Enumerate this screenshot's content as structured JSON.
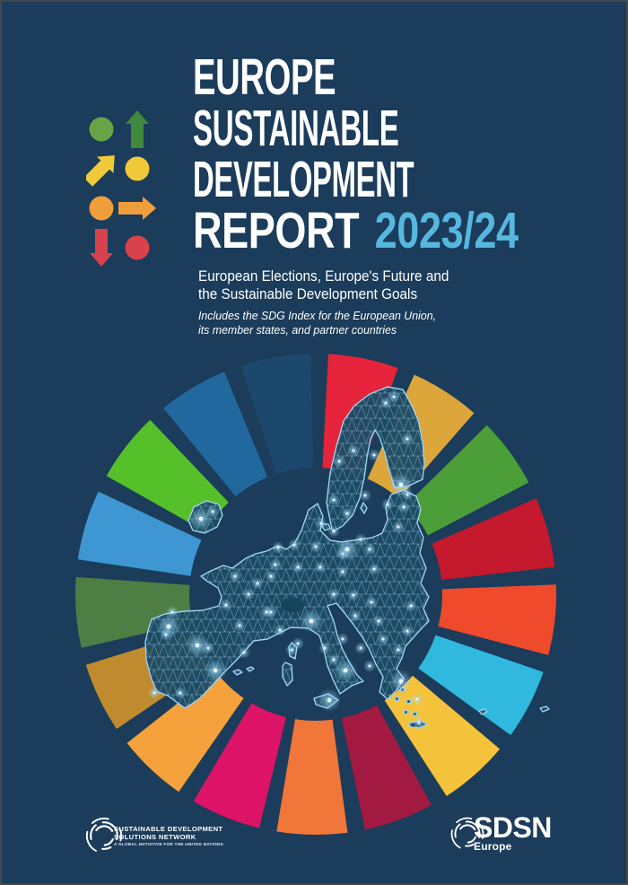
{
  "page": {
    "background": "#1B3C5A",
    "accent": "#56B7DF"
  },
  "title": {
    "line1": "EUROPE",
    "line2": "SUSTAINABLE",
    "line3": "DEVELOPMENT",
    "line4_white": "REPORT",
    "line4_accent": "2023/24"
  },
  "subtitle": {
    "line1": "European Elections, Europe's Future and",
    "line2": "the Sustainable Development Goals"
  },
  "note": {
    "line1": "Includes the SDG Index for the European Union,",
    "line2": "its member states, and partner countries"
  },
  "arrow_grid": {
    "colors": {
      "green_circle": "#68A447",
      "green_arrow": "#41893F",
      "yellow": "#EFC938",
      "orange": "#F09E3B",
      "red": "#D8424C"
    }
  },
  "wheel": {
    "segments": [
      {
        "sdg": 1,
        "color": "#E5243B"
      },
      {
        "sdg": 2,
        "color": "#DDA63A"
      },
      {
        "sdg": 3,
        "color": "#4C9F38"
      },
      {
        "sdg": 4,
        "color": "#C5192D"
      },
      {
        "sdg": 5,
        "color": "#EF4A2B"
      },
      {
        "sdg": 6,
        "color": "#30B8DE"
      },
      {
        "sdg": 7,
        "color": "#F5C33B"
      },
      {
        "sdg": 8,
        "color": "#A21942"
      },
      {
        "sdg": 9,
        "color": "#F0763A"
      },
      {
        "sdg": 10,
        "color": "#DD1367"
      },
      {
        "sdg": 11,
        "color": "#F5A13C"
      },
      {
        "sdg": 12,
        "color": "#BF8B2E"
      },
      {
        "sdg": 13,
        "color": "#4F7E44"
      },
      {
        "sdg": 14,
        "color": "#3E96D2"
      },
      {
        "sdg": 15,
        "color": "#56C02B"
      },
      {
        "sdg": 16,
        "color": "#20689D"
      },
      {
        "sdg": 17,
        "color": "#1D486E"
      }
    ]
  },
  "footer": {
    "sdsn": {
      "line1": "SUSTAINABLE DEVELOPMENT",
      "line2": "SOLUTIONS NETWORK",
      "tagline": "A GLOBAL INITIATIVE FOR THE UNITED NATIONS"
    },
    "sdsn_europe": {
      "acronym": "SDSN",
      "region": "Europe"
    }
  }
}
